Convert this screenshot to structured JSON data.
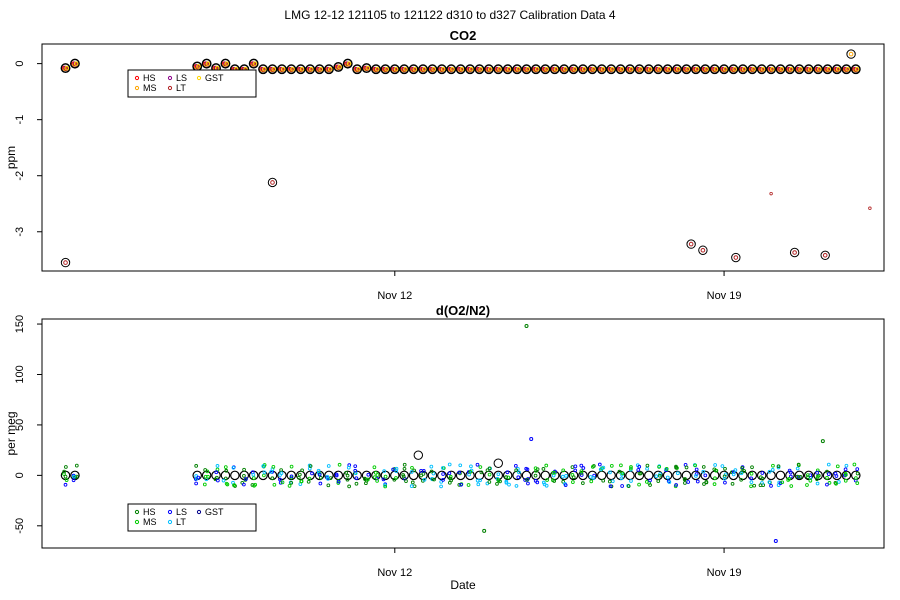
{
  "figure": {
    "title": "LMG   12-12    121105 to 121122    d310 to d327   Calibration Data 4"
  },
  "chart_data": [
    {
      "type": "scatter",
      "title": "CO2",
      "xlabel": "",
      "ylabel": "ppm",
      "xlim": [
        309.5,
        327.4
      ],
      "ylim": [
        -3.7,
        0.35
      ],
      "xticks": [
        {
          "value": 317,
          "label": "Nov 12"
        },
        {
          "value": 324,
          "label": "Nov 19"
        }
      ],
      "yticks": [
        {
          "value": -3,
          "label": "-3"
        },
        {
          "value": -2,
          "label": "-2"
        },
        {
          "value": -1,
          "label": "-1"
        },
        {
          "value": 0,
          "label": "0"
        }
      ],
      "legend": {
        "placement": "top-left",
        "entries": [
          {
            "name": "HS",
            "color": "#ff0000"
          },
          {
            "name": "MS",
            "color": "#ffa500"
          },
          {
            "name": "LS",
            "color": "#8b008b"
          },
          {
            "name": "LT",
            "color": "#b22222"
          },
          {
            "name": "GST",
            "color": "#ffd700"
          }
        ]
      },
      "baseline_x": [
        310.0,
        310.2,
        312.8,
        313.0,
        313.2,
        313.4,
        313.6,
        313.8,
        314.0,
        314.2,
        314.4,
        314.6,
        314.8,
        315.0,
        315.2,
        315.4,
        315.6,
        315.8,
        316.0,
        316.2,
        316.4,
        316.6,
        316.8,
        317.0,
        317.2,
        317.4,
        317.6,
        317.8,
        318.0,
        318.2,
        318.4,
        318.6,
        318.8,
        319.0,
        319.2,
        319.4,
        319.6,
        319.8,
        320.0,
        320.2,
        320.4,
        320.6,
        320.8,
        321.0,
        321.2,
        321.4,
        321.6,
        321.8,
        322.0,
        322.2,
        322.4,
        322.6,
        322.8,
        323.0,
        323.2,
        323.4,
        323.6,
        323.8,
        324.0,
        324.2,
        324.4,
        324.6,
        324.8,
        325.0,
        325.2,
        325.4,
        325.6,
        325.8,
        326.0,
        326.2,
        326.4,
        326.6,
        326.8
      ],
      "baseline_y": [
        -0.08,
        0.0,
        -0.05,
        0.0,
        -0.08,
        0.0,
        -0.1,
        -0.1,
        0.0,
        -0.1,
        -0.1,
        -0.1,
        -0.1,
        -0.1,
        -0.1,
        -0.1,
        -0.1,
        -0.06,
        0.0,
        -0.1,
        -0.08,
        -0.1,
        -0.1,
        -0.1,
        -0.1,
        -0.1,
        -0.1,
        -0.1,
        -0.1,
        -0.1,
        -0.1,
        -0.1,
        -0.1,
        -0.1,
        -0.1,
        -0.1,
        -0.1,
        -0.1,
        -0.1,
        -0.1,
        -0.1,
        -0.1,
        -0.1,
        -0.1,
        -0.1,
        -0.1,
        -0.1,
        -0.1,
        -0.1,
        -0.1,
        -0.1,
        -0.1,
        -0.1,
        -0.1,
        -0.1,
        -0.1,
        -0.1,
        -0.1,
        -0.1,
        -0.1,
        -0.1,
        -0.1,
        -0.1,
        -0.1,
        -0.1,
        -0.1,
        -0.1,
        -0.1,
        -0.1,
        -0.1,
        -0.1,
        -0.1,
        -0.1
      ],
      "outliers": [
        {
          "x": 310.0,
          "y": -3.55
        },
        {
          "x": 314.4,
          "y": -2.12
        },
        {
          "x": 323.3,
          "y": -3.22
        },
        {
          "x": 323.55,
          "y": -3.33
        },
        {
          "x": 324.25,
          "y": -3.46
        },
        {
          "x": 325.5,
          "y": -3.37
        },
        {
          "x": 326.15,
          "y": -3.42
        },
        {
          "x": 326.7,
          "y": 0.17
        }
      ],
      "isolated": [
        {
          "x": 325.0,
          "y": -2.32,
          "color": "#b22222"
        },
        {
          "x": 327.1,
          "y": -2.58,
          "color": "#b22222"
        }
      ]
    },
    {
      "type": "scatter",
      "title": "d(O2/N2)",
      "xlabel": "Date",
      "ylabel": "per meg",
      "xlim": [
        309.5,
        327.4
      ],
      "ylim": [
        -72,
        155
      ],
      "xticks": [
        {
          "value": 317,
          "label": "Nov 12"
        },
        {
          "value": 324,
          "label": "Nov 19"
        }
      ],
      "yticks": [
        {
          "value": -50,
          "label": "-50"
        },
        {
          "value": 0,
          "label": "0"
        },
        {
          "value": 50,
          "label": "50"
        },
        {
          "value": 100,
          "label": "100"
        },
        {
          "value": 150,
          "label": "150"
        }
      ],
      "legend": {
        "placement": "bottom-left",
        "entries": [
          {
            "name": "HS",
            "color": "#008000"
          },
          {
            "name": "MS",
            "color": "#00cc00"
          },
          {
            "name": "LS",
            "color": "#0000ff"
          },
          {
            "name": "LT",
            "color": "#00bfff"
          },
          {
            "name": "GST",
            "color": "#00008b"
          }
        ]
      },
      "outliers": [
        {
          "x": 319.8,
          "y": 148,
          "color": "#008000"
        },
        {
          "x": 319.2,
          "y": 12,
          "color": "#000000"
        },
        {
          "x": 317.5,
          "y": 20,
          "color": "#000000"
        },
        {
          "x": 319.9,
          "y": 36,
          "color": "#0000ff"
        },
        {
          "x": 325.1,
          "y": -65,
          "color": "#0000ff"
        },
        {
          "x": 318.9,
          "y": -55,
          "color": "#008000"
        },
        {
          "x": 326.1,
          "y": 34,
          "color": "#008000"
        }
      ]
    }
  ]
}
